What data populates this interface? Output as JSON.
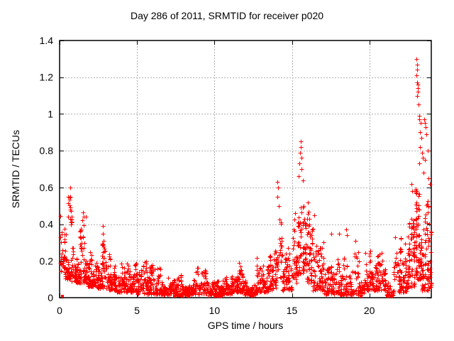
{
  "window": {
    "title": "Day 286 of 2011, SRMTID for receiver p020"
  },
  "chart_data": {
    "type": "scatter",
    "title": "Day 286 of 2011, SRMTID for receiver p020",
    "xlabel": "GPS time / hours",
    "ylabel": "SRMTID / TECUs",
    "xlim": [
      0,
      24
    ],
    "ylim": [
      0,
      1.4
    ],
    "xtick_values": [
      0,
      5,
      10,
      15,
      20
    ],
    "xtick_labels": [
      "0",
      "5",
      "10",
      "15",
      "20"
    ],
    "ytick_values": [
      0,
      0.2,
      0.4,
      0.6,
      0.8,
      1,
      1.2,
      1.4
    ],
    "ytick_labels": [
      "0",
      "0.2",
      "0.4",
      "0.6",
      "0.8",
      "1",
      "1.2",
      "1.4"
    ],
    "grid": true,
    "legend": "none",
    "marker": "plus",
    "marker_size_px": 7,
    "marker_color": "#ff0000",
    "grid_color": "#b0b0b0",
    "border_color": "#000000",
    "background_color": "#ffffff",
    "point_cloud": {
      "seed": 1286,
      "columns_per_hour": 6,
      "segments": [
        [
          0.03,
          0.35,
          30,
          0.14,
          0.42,
          1.2
        ],
        [
          0.3,
          0.75,
          45,
          0.1,
          0.4,
          1.4
        ],
        [
          0.55,
          0.8,
          14,
          0.4,
          0.56,
          1.0
        ],
        [
          0.75,
          1.3,
          60,
          0.08,
          0.38,
          1.4
        ],
        [
          1.3,
          1.8,
          60,
          0.08,
          0.46,
          1.5
        ],
        [
          1.8,
          2.4,
          70,
          0.06,
          0.32,
          1.5
        ],
        [
          2.4,
          3.0,
          70,
          0.05,
          0.3,
          1.6
        ],
        [
          2.7,
          2.9,
          8,
          0.24,
          0.4,
          1.0
        ],
        [
          3.0,
          3.6,
          70,
          0.04,
          0.24,
          1.5
        ],
        [
          3.6,
          4.3,
          75,
          0.03,
          0.22,
          1.5
        ],
        [
          4.3,
          5.0,
          75,
          0.03,
          0.23,
          1.6
        ],
        [
          5.0,
          5.8,
          80,
          0.02,
          0.2,
          1.6
        ],
        [
          5.8,
          6.7,
          85,
          0.02,
          0.18,
          1.6
        ],
        [
          6.7,
          7.6,
          85,
          0.015,
          0.13,
          1.5
        ],
        [
          7.6,
          8.6,
          90,
          0.015,
          0.14,
          1.5
        ],
        [
          8.6,
          9.5,
          85,
          0.02,
          0.19,
          1.6
        ],
        [
          9.5,
          10.5,
          90,
          0.01,
          0.11,
          1.4
        ],
        [
          10.5,
          11.2,
          70,
          0.02,
          0.14,
          1.5
        ],
        [
          11.2,
          11.9,
          70,
          0.03,
          0.22,
          1.7
        ],
        [
          11.9,
          12.7,
          75,
          0.015,
          0.13,
          1.5
        ],
        [
          12.7,
          13.5,
          75,
          0.03,
          0.23,
          1.6
        ],
        [
          13.5,
          14.0,
          55,
          0.04,
          0.28,
          1.5
        ],
        [
          14.0,
          14.35,
          30,
          0.1,
          0.55,
          1.2
        ],
        [
          14.35,
          15.05,
          60,
          0.04,
          0.33,
          1.5
        ],
        [
          15.05,
          15.35,
          35,
          0.08,
          0.5,
          1.3
        ],
        [
          15.35,
          15.95,
          70,
          0.12,
          0.78,
          1.2
        ],
        [
          15.95,
          16.35,
          50,
          0.08,
          0.52,
          1.3
        ],
        [
          16.35,
          17.05,
          70,
          0.04,
          0.33,
          1.6
        ],
        [
          17.05,
          18.1,
          95,
          0.02,
          0.25,
          1.7
        ],
        [
          18.1,
          19.35,
          110,
          0.015,
          0.27,
          1.8
        ],
        [
          19.35,
          19.65,
          25,
          0.02,
          0.17,
          1.4
        ],
        [
          19.65,
          20.45,
          75,
          0.04,
          0.31,
          1.6
        ],
        [
          20.45,
          21.05,
          65,
          0.04,
          0.3,
          1.6
        ],
        [
          21.05,
          21.6,
          35,
          0.01,
          0.12,
          1.4
        ],
        [
          21.55,
          21.8,
          12,
          0.1,
          0.33,
          1.2
        ],
        [
          21.8,
          22.45,
          75,
          0.03,
          0.36,
          1.7
        ],
        [
          22.45,
          22.95,
          70,
          0.05,
          0.5,
          1.5
        ],
        [
          22.95,
          23.4,
          85,
          0.1,
          0.78,
          1.3
        ],
        [
          23.4,
          24.0,
          85,
          0.04,
          0.6,
          1.6
        ]
      ]
    },
    "outlier_points": [
      [
        0.05,
        0.445
      ],
      [
        0.68,
        0.6
      ],
      [
        0.62,
        0.545
      ],
      [
        0.63,
        0.535
      ],
      [
        0.7,
        0.49
      ],
      [
        1.52,
        0.465
      ],
      [
        1.55,
        0.44
      ],
      [
        1.7,
        0.44
      ],
      [
        1.45,
        0.42
      ],
      [
        2.8,
        0.39
      ],
      [
        2.78,
        0.35
      ],
      [
        2.83,
        0.31
      ],
      [
        14.05,
        0.63
      ],
      [
        14.1,
        0.6
      ],
      [
        14.08,
        0.55
      ],
      [
        14.15,
        0.5
      ],
      [
        15.55,
        0.85
      ],
      [
        15.57,
        0.82
      ],
      [
        15.52,
        0.79
      ],
      [
        15.6,
        0.76
      ],
      [
        15.5,
        0.73
      ],
      [
        15.62,
        0.7
      ],
      [
        15.45,
        0.66
      ],
      [
        15.7,
        0.64
      ],
      [
        16.05,
        0.52
      ],
      [
        16.45,
        0.45
      ],
      [
        17.55,
        0.35
      ],
      [
        18.05,
        0.35
      ],
      [
        18.5,
        0.37
      ],
      [
        18.55,
        0.34
      ],
      [
        19.1,
        0.31
      ],
      [
        21.65,
        0.33
      ],
      [
        22.7,
        0.62
      ],
      [
        22.75,
        0.58
      ],
      [
        23.06,
        1.3
      ],
      [
        23.08,
        1.27
      ],
      [
        23.07,
        1.24
      ],
      [
        23.05,
        1.21
      ],
      [
        23.1,
        1.17
      ],
      [
        23.12,
        1.16
      ],
      [
        23.11,
        1.14
      ],
      [
        23.13,
        1.12
      ],
      [
        23.09,
        1.1
      ],
      [
        23.16,
        1.05
      ],
      [
        23.22,
        0.99
      ],
      [
        23.2,
        0.97
      ],
      [
        23.3,
        0.95
      ],
      [
        23.55,
        0.97
      ],
      [
        23.6,
        0.95
      ],
      [
        23.65,
        0.93
      ],
      [
        23.25,
        0.9
      ],
      [
        23.35,
        0.87
      ],
      [
        23.7,
        0.89
      ],
      [
        23.28,
        0.82
      ],
      [
        23.4,
        0.79
      ],
      [
        23.45,
        0.76
      ],
      [
        23.6,
        0.75
      ],
      [
        23.75,
        0.8
      ],
      [
        23.2,
        0.73
      ],
      [
        23.5,
        0.68
      ],
      [
        23.8,
        0.65
      ],
      [
        23.9,
        0.62
      ]
    ],
    "zero_marker_hours": [
      0.18,
      7.4,
      7.92,
      8.35,
      10.02,
      10.2,
      10.45,
      12.45,
      19.47,
      21.15,
      21.4
    ]
  }
}
